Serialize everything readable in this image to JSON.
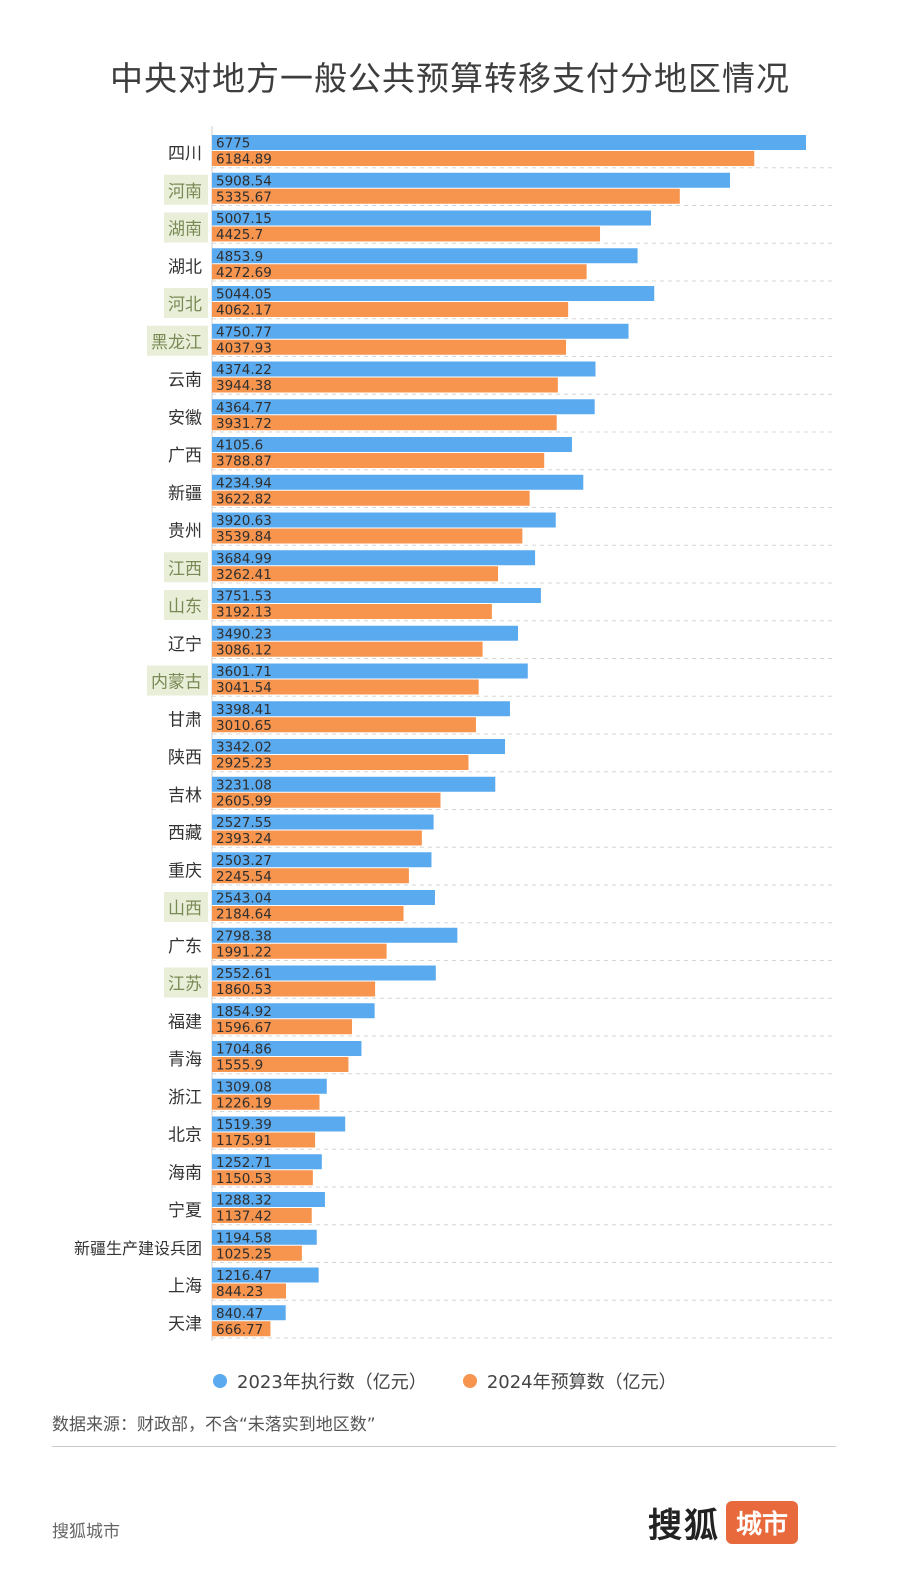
{
  "title": "中央对地方一般公共预算转移支付分地区情况",
  "colors": {
    "series_2023": "#5aaaf0",
    "series_2024": "#f7944d",
    "highlight_bg": "#e8eed8",
    "label_default": "#333333",
    "label_highlight": "#7a8a55",
    "value_text": "#2f2f2f",
    "grid": "#d6d6d6"
  },
  "chart_data": {
    "type": "bar",
    "orientation": "horizontal",
    "title": "中央对地方一般公共预算转移支付分地区情况",
    "categories": [
      "四川",
      "河南",
      "湖南",
      "湖北",
      "河北",
      "黑龙江",
      "云南",
      "安徽",
      "广西",
      "新疆",
      "贵州",
      "江西",
      "山东",
      "辽宁",
      "内蒙古",
      "甘肃",
      "陕西",
      "吉林",
      "西藏",
      "重庆",
      "山西",
      "广东",
      "江苏",
      "福建",
      "青海",
      "浙江",
      "北京",
      "海南",
      "宁夏",
      "新疆生产建设兵团",
      "上海",
      "天津"
    ],
    "highlighted_categories": [
      "河南",
      "湖南",
      "河北",
      "黑龙江",
      "江西",
      "山东",
      "内蒙古",
      "山西",
      "江苏"
    ],
    "series": [
      {
        "name": "2023年执行数（亿元）",
        "values": [
          6775,
          5908.54,
          5007.15,
          4853.9,
          5044.05,
          4750.77,
          4374.22,
          4364.77,
          4105.6,
          4234.94,
          3920.63,
          3684.99,
          3751.53,
          3490.23,
          3601.71,
          3398.41,
          3342.02,
          3231.08,
          2527.55,
          2503.27,
          2543.04,
          2798.38,
          2552.61,
          1854.92,
          1704.86,
          1309.08,
          1519.39,
          1252.71,
          1288.32,
          1194.58,
          1216.47,
          840.47
        ]
      },
      {
        "name": "2024年预算数（亿元）",
        "values": [
          6184.89,
          5335.67,
          4425.7,
          4272.69,
          4062.17,
          4037.93,
          3944.38,
          3931.72,
          3788.87,
          3622.82,
          3539.84,
          3262.41,
          3192.13,
          3086.12,
          3041.54,
          3010.65,
          2925.23,
          2605.99,
          2393.24,
          2245.54,
          2184.64,
          1991.22,
          1860.53,
          1596.67,
          1555.9,
          1226.19,
          1175.91,
          1150.53,
          1137.42,
          1025.25,
          844.23,
          666.77
        ]
      }
    ],
    "xlim": [
      0,
      7200
    ],
    "grid": true,
    "legend_position": "bottom"
  },
  "legend": {
    "series_2023_label": "2023年执行数（亿元）",
    "series_2024_label": "2024年预算数（亿元）"
  },
  "source": "数据来源：财政部，不含“未落实到地区数”",
  "publisher": "搜狐城市",
  "logo": {
    "main": "搜狐",
    "badge": "城市"
  }
}
